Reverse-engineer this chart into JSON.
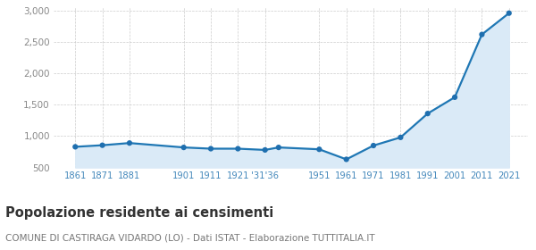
{
  "years": [
    1861,
    1871,
    1881,
    1901,
    1911,
    1921,
    1931,
    1936,
    1951,
    1961,
    1971,
    1981,
    1991,
    2001,
    2011,
    2021
  ],
  "population": [
    830,
    855,
    890,
    820,
    800,
    800,
    780,
    820,
    790,
    630,
    850,
    980,
    1360,
    1620,
    2620,
    2960
  ],
  "ylim": [
    500,
    3050
  ],
  "yticks": [
    500,
    1000,
    1500,
    2000,
    2500,
    3000
  ],
  "ytick_labels": [
    "500",
    "1,000",
    "1,500",
    "2,000",
    "2,500",
    "3,000"
  ],
  "xtick_positions": [
    1861,
    1871,
    1881,
    1901,
    1911,
    1921,
    1931,
    1951,
    1961,
    1971,
    1981,
    1991,
    2001,
    2011,
    2021
  ],
  "xtick_labels": [
    "1861",
    "1871",
    "1881",
    "1901",
    "1911",
    "1921",
    "'31'36",
    "1951",
    "1961",
    "1971",
    "1981",
    "1991",
    "2001",
    "2011",
    "2021"
  ],
  "xlim": [
    1853,
    2028
  ],
  "line_color": "#1f77b4",
  "fill_color": "#daeaf7",
  "marker_color": "#1f6faf",
  "bg_color": "#ffffff",
  "grid_color": "#cccccc",
  "title": "Popolazione residente ai censimenti",
  "subtitle": "COMUNE DI CASTIRAGA VIDARDO (LO) - Dati ISTAT - Elaborazione TUTTITALIA.IT",
  "title_fontsize": 10.5,
  "subtitle_fontsize": 7.5,
  "tick_label_color": "#4488bb",
  "ytick_label_color": "#888888"
}
